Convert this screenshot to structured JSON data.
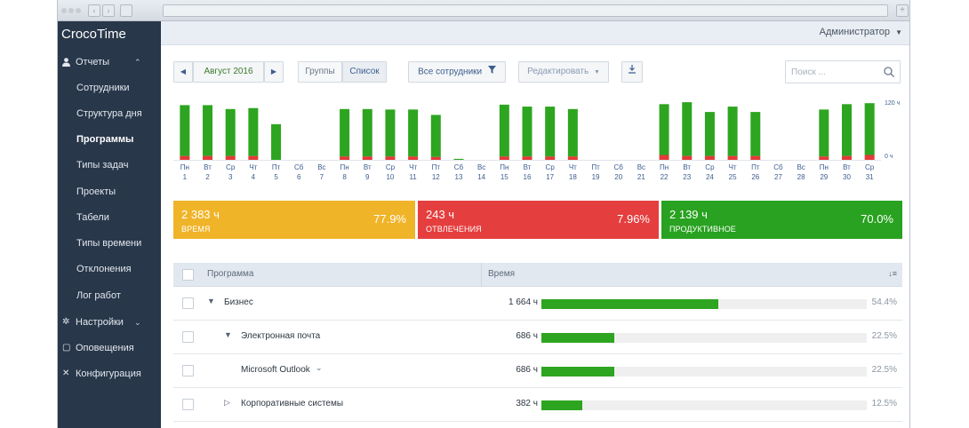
{
  "app": {
    "title": "CrocoTime",
    "user_menu": "Администратор"
  },
  "sidebar": {
    "reports": "Отчеты",
    "report_items": [
      {
        "label": "Сотрудники",
        "active": false
      },
      {
        "label": "Структура дня",
        "active": false
      },
      {
        "label": "Программы",
        "active": true
      },
      {
        "label": "Типы задач",
        "active": false
      },
      {
        "label": "Проекты",
        "active": false
      },
      {
        "label": "Табели",
        "active": false
      },
      {
        "label": "Типы времени",
        "active": false
      },
      {
        "label": "Отклонения",
        "active": false
      },
      {
        "label": "Лог работ",
        "active": false
      }
    ],
    "settings": "Настройки",
    "notifications": "Оповещения",
    "configuration": "Конфигурация"
  },
  "toolbar": {
    "month": "Август 2016",
    "view_groups": "Группы",
    "view_list": "Список",
    "filter_employees": "Все сотрудники",
    "edit": "Редактировать",
    "search_placeholder": "Поиск ..."
  },
  "chart_data": {
    "type": "bar",
    "categories": [
      "1",
      "2",
      "3",
      "4",
      "5",
      "6",
      "7",
      "8",
      "9",
      "10",
      "11",
      "12",
      "13",
      "14",
      "15",
      "16",
      "17",
      "18",
      "19",
      "20",
      "21",
      "22",
      "23",
      "24",
      "25",
      "26",
      "27",
      "28",
      "29",
      "30",
      "31"
    ],
    "weekdays": [
      "Пн",
      "Вт",
      "Ср",
      "Чт",
      "Пт",
      "Сб",
      "Вс",
      "Пн",
      "Вт",
      "Ср",
      "Чт",
      "Пт",
      "Сб",
      "Вс",
      "Пн",
      "Вт",
      "Ср",
      "Чт",
      "Пт",
      "Сб",
      "Вс",
      "Пн",
      "Вт",
      "Ср",
      "Чт",
      "Пт",
      "Сб",
      "Вс",
      "Пн",
      "Вт",
      "Ср"
    ],
    "series": [
      {
        "color": "#e33a3a",
        "values": [
          8,
          8,
          8,
          8,
          0,
          0,
          0,
          7,
          7,
          7,
          7,
          6,
          0,
          0,
          7,
          7,
          7,
          7,
          0,
          0,
          0,
          10,
          8,
          8,
          8,
          8,
          0,
          0,
          7,
          8,
          10
        ]
      },
      {
        "color": "#2da520",
        "values": [
          104,
          104,
          96,
          98,
          73,
          0,
          0,
          97,
          97,
          96,
          96,
          86,
          2,
          0,
          106,
          102,
          102,
          97,
          0,
          0,
          0,
          104,
          110,
          90,
          101,
          90,
          0,
          0,
          96,
          106,
          106
        ]
      }
    ],
    "stacked": true,
    "ylim": [
      0,
      120
    ],
    "y_ticks": [
      "120 ч",
      "0 ч"
    ]
  },
  "summary": [
    {
      "value": "2 383 ч",
      "label": "ВРЕМЯ",
      "percent": "77.9%",
      "color": "#f0b429"
    },
    {
      "value": "243 ч",
      "label": "ОТВЛЕЧЕНИЯ",
      "percent": "7.96%",
      "color": "#e53e3e"
    },
    {
      "value": "2 139 ч",
      "label": "ПРОДУКТИВНОЕ",
      "percent": "70.0%",
      "color": "#28a220"
    }
  ],
  "table": {
    "col_program": "Программа",
    "col_time": "Время",
    "rows": [
      {
        "name": "Бизнес",
        "time": "1 664 ч",
        "percent": "54.4%",
        "share": 54.4,
        "level": 0,
        "caret": "▼"
      },
      {
        "name": "Электронная почта",
        "time": "686 ч",
        "percent": "22.5%",
        "share": 22.5,
        "level": 1,
        "caret": "▼"
      },
      {
        "name": "Microsoft Outlook",
        "time": "686 ч",
        "percent": "22.5%",
        "share": 22.5,
        "level": 2,
        "caret": "⌄"
      },
      {
        "name": "Корпоративные системы",
        "time": "382 ч",
        "percent": "12.5%",
        "share": 12.5,
        "level": 1,
        "caret": "▷"
      }
    ]
  }
}
